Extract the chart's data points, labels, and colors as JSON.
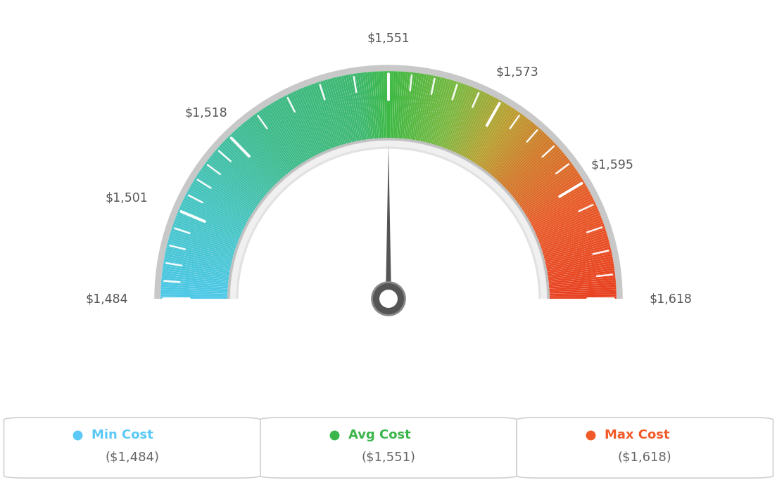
{
  "min_val": 1484,
  "max_val": 1618,
  "avg_val": 1551,
  "needle_val": 1551,
  "tick_labels": {
    "1484": "$1,484",
    "1501": "$1,501",
    "1518": "$1,518",
    "1551": "$1,551",
    "1573": "$1,573",
    "1595": "$1,595",
    "1618": "$1,618"
  },
  "tick_values": [
    1484,
    1501,
    1518,
    1551,
    1573,
    1595,
    1618
  ],
  "minor_tick_count": 4,
  "legend": [
    {
      "label": "Min Cost",
      "value": "($1,484)",
      "color": "#5bc8f5"
    },
    {
      "label": "Avg Cost",
      "value": "($1,551)",
      "color": "#3ab54a"
    },
    {
      "label": "Max Cost",
      "value": "($1,618)",
      "color": "#f05a28"
    }
  ],
  "bg_color": "#ffffff",
  "outer_r": 0.8,
  "inner_r": 0.56,
  "needle_color": "#555555",
  "hub_color": "#555555",
  "gradient_colors": [
    [
      0.0,
      "#4dc8e8"
    ],
    [
      0.15,
      "#45c4c0"
    ],
    [
      0.3,
      "#3dba8a"
    ],
    [
      0.45,
      "#3db870"
    ],
    [
      0.5,
      "#3db843"
    ],
    [
      0.6,
      "#7ab840"
    ],
    [
      0.68,
      "#b8a030"
    ],
    [
      0.75,
      "#d07a28"
    ],
    [
      0.85,
      "#e85a28"
    ],
    [
      1.0,
      "#e84020"
    ]
  ]
}
